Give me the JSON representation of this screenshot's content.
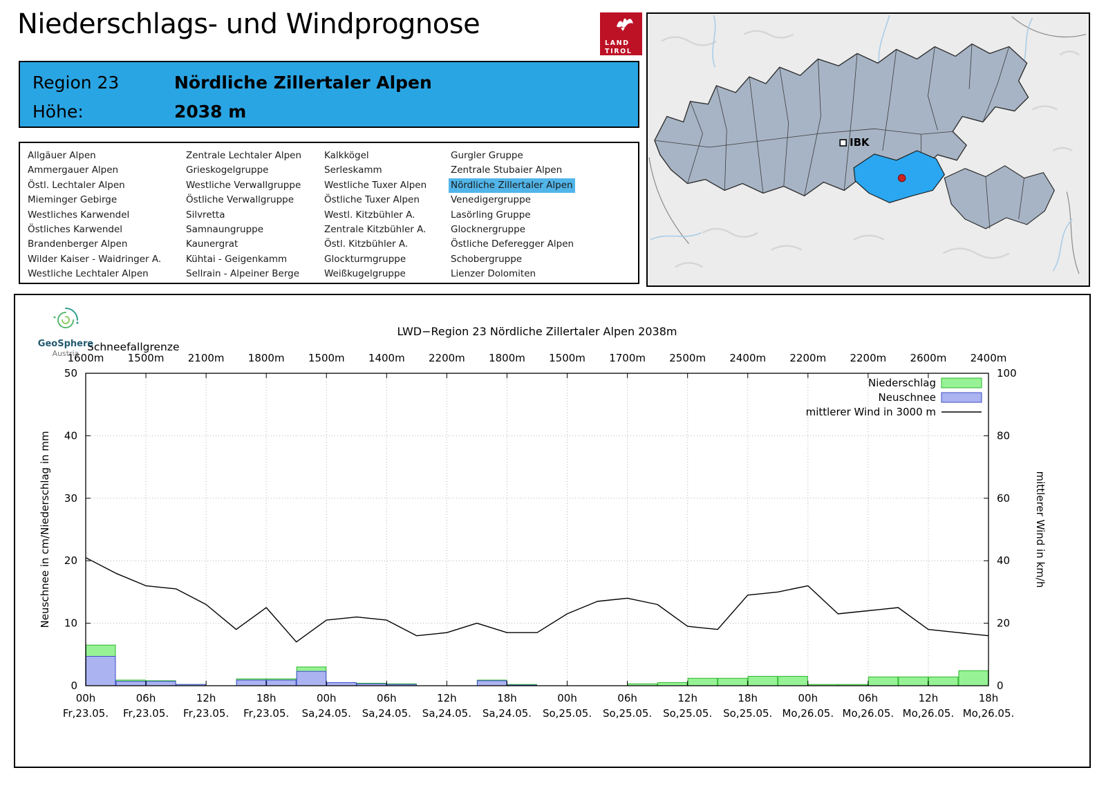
{
  "page": {
    "title": "Niederschlags- und Windprognose"
  },
  "logo": {
    "land": "LAND",
    "tirol": "TIROL"
  },
  "header": {
    "region_label": "Region 23",
    "region_name": "Nördliche Zillertaler Alpen",
    "elevation_label": "Höhe:",
    "elevation_value": "2038 m",
    "accent_color": "#2aa5e4"
  },
  "region_list": {
    "selected": "Nördliche Zillertaler Alpen",
    "highlight_color": "#52b5e9",
    "columns": [
      [
        "Allgäuer Alpen",
        "Ammergauer Alpen",
        "Östl. Lechtaler Alpen",
        "Mieminger Gebirge",
        "Westliches Karwendel",
        "Östliches Karwendel",
        "Brandenberger Alpen",
        "Wilder Kaiser - Waidringer A.",
        "Westliche Lechtaler Alpen"
      ],
      [
        "Zentrale Lechtaler Alpen",
        "Grieskogelgruppe",
        "Westliche Verwallgruppe",
        "Östliche Verwallgruppe",
        "Silvretta",
        "Samnaungruppe",
        "Kaunergrat",
        "Kühtai - Geigenkamm",
        "Sellrain - Alpeiner Berge"
      ],
      [
        "Kalkkögel",
        "Serleskamm",
        "Westliche Tuxer Alpen",
        "Östliche Tuxer Alpen",
        "Westl. Kitzbühler A.",
        "Zentrale Kitzbühler A.",
        "Östl. Kitzbühler A.",
        "Glockturmgruppe",
        "Weißkugelgruppe"
      ],
      [
        "Gurgler Gruppe",
        "Zentrale Stubaier Alpen",
        "Nördliche Zillertaler Alpen",
        "Venedigergruppe",
        "Lasörling Gruppe",
        "Glocknergruppe",
        "Östliche Deferegger Alpen",
        "Schobergruppe",
        "Lienzer Dolomiten"
      ]
    ]
  },
  "map": {
    "marker_label": "IBK",
    "highlight_color": "#2aa7f0",
    "region_fill": "#a7b4c5",
    "dot_color": "#cc2222"
  },
  "geosphere": {
    "line1": "GeoSphere",
    "line2": "Austria"
  },
  "chart_data": {
    "type": "bar",
    "title": "LWD−Region 23 Nördliche Zillertaler Alpen 2038m",
    "snowline_label": "Schneefallgrenze",
    "snowline_values": [
      "1600m",
      "1500m",
      "2100m",
      "1800m",
      "1500m",
      "1400m",
      "2200m",
      "1800m",
      "1500m",
      "1700m",
      "2500m",
      "2400m",
      "2200m",
      "2200m",
      "2600m",
      "2400m"
    ],
    "ylabel_left": "Neuschnee in cm/Niederschlag in mm",
    "ylabel_right": "mittlerer Wind in km/h",
    "ylim_left": [
      0,
      50
    ],
    "ylim_right": [
      0,
      100
    ],
    "yticks_left": [
      0,
      10,
      20,
      30,
      40,
      50
    ],
    "yticks_right": [
      0,
      20,
      40,
      60,
      80,
      100
    ],
    "x_hours_total": 90,
    "x_tick_step_hours": 6,
    "grid": true,
    "legend_position": "top-right",
    "x_tick_labels": [
      {
        "time": "00h",
        "date": "Fr,23.05."
      },
      {
        "time": "06h",
        "date": "Fr,23.05."
      },
      {
        "time": "12h",
        "date": "Fr,23.05."
      },
      {
        "time": "18h",
        "date": "Fr,23.05."
      },
      {
        "time": "00h",
        "date": "Sa,24.05."
      },
      {
        "time": "06h",
        "date": "Sa,24.05."
      },
      {
        "time": "12h",
        "date": "Sa,24.05."
      },
      {
        "time": "18h",
        "date": "Sa,24.05."
      },
      {
        "time": "00h",
        "date": "So,25.05."
      },
      {
        "time": "06h",
        "date": "So,25.05."
      },
      {
        "time": "12h",
        "date": "So,25.05."
      },
      {
        "time": "18h",
        "date": "So,25.05."
      },
      {
        "time": "00h",
        "date": "Mo,26.05."
      },
      {
        "time": "06h",
        "date": "Mo,26.05."
      },
      {
        "time": "12h",
        "date": "Mo,26.05."
      },
      {
        "time": "18h",
        "date": "Mo,26.05."
      }
    ],
    "legend": [
      {
        "label": "Niederschlag",
        "type": "bar",
        "fill": "#97f295",
        "stroke": "#2ab62a"
      },
      {
        "label": "Neuschnee",
        "type": "bar",
        "fill": "#abb3f0",
        "stroke": "#3c4ec9"
      },
      {
        "label": "mittlerer Wind in 3000 m",
        "type": "line",
        "stroke": "#000000"
      }
    ],
    "series": [
      {
        "name": "Niederschlag",
        "unit": "mm",
        "type": "bar",
        "axis": "left",
        "fill": "#97f295",
        "stroke": "#2ab62a",
        "step_hours": 3,
        "values": [
          6.5,
          0.9,
          0.8,
          0.2,
          0,
          1.1,
          1.1,
          3.0,
          0.5,
          0.4,
          0.3,
          0,
          0,
          0.9,
          0.2,
          0,
          0,
          0,
          0.3,
          0.5,
          1.2,
          1.2,
          1.5,
          1.5,
          0.2,
          0.2,
          1.4,
          1.4,
          1.4,
          2.4
        ]
      },
      {
        "name": "Neuschnee",
        "unit": "cm",
        "type": "bar",
        "axis": "left",
        "fill": "#abb3f0",
        "stroke": "#3c4ec9",
        "step_hours": 3,
        "values": [
          4.7,
          0.7,
          0.7,
          0.2,
          0,
          0.9,
          0.9,
          2.3,
          0.5,
          0.3,
          0.2,
          0,
          0,
          0.8,
          0.1,
          0,
          0,
          0,
          0,
          0,
          0,
          0,
          0,
          0,
          0,
          0,
          0,
          0,
          0,
          0
        ]
      },
      {
        "name": "mittlerer Wind in 3000 m",
        "unit": "km/h",
        "type": "line",
        "axis": "right",
        "stroke": "#000000",
        "step_hours": 3,
        "values": [
          41,
          36,
          32,
          31,
          26,
          18,
          25,
          14,
          21,
          22,
          21,
          16,
          17,
          20,
          17,
          17,
          23,
          27,
          28,
          26,
          19,
          18,
          29,
          30,
          32,
          23,
          24,
          25,
          18,
          17,
          16
        ]
      }
    ]
  }
}
